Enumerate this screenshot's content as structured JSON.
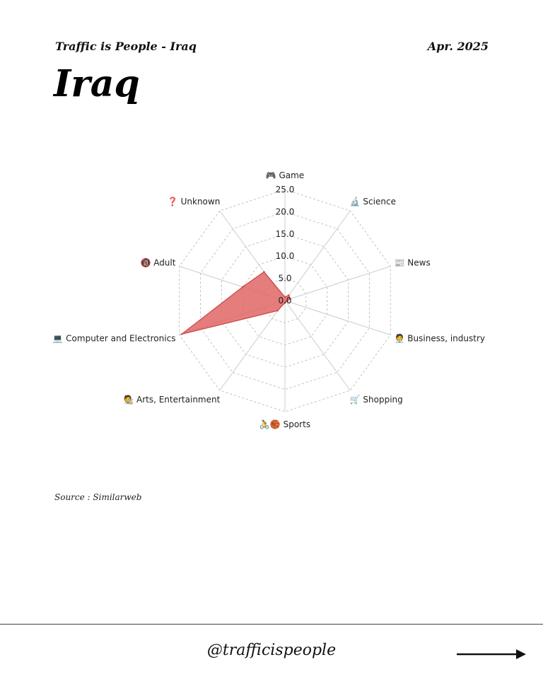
{
  "header": {
    "subtitle": "Traffic is People - Iraq",
    "date": "Apr. 2025",
    "title": "Iraq"
  },
  "source": "Source : Similarweb",
  "footer": {
    "handle": "@trafficispeople",
    "arrow_icon": "right-arrow-icon"
  },
  "colors": {
    "fill": "#e06666",
    "stroke": "#cc4444"
  },
  "chart_data": {
    "type": "radar",
    "title": "",
    "categories": [
      "🎮 Game",
      "🔬 Science",
      "📰 News",
      "🧑‍💼 Business, industry",
      "🛒 Shopping",
      "🚴🏀 Sports",
      "🧑‍🎨 Arts, Entertainment",
      "💻 Computer and Electronics",
      "🔞 Adult",
      "❓ Unknown"
    ],
    "series": [
      {
        "values": [
          0.8,
          1.5,
          1.2,
          0.5,
          0.3,
          0.5,
          2.8,
          24.5,
          10.0,
          8.0
        ]
      }
    ],
    "rlim": [
      0,
      25
    ],
    "ticks": [
      "0.0",
      "5.0",
      "10.0",
      "15.0",
      "20.0",
      "25.0"
    ],
    "tick_values": [
      0,
      5,
      10,
      15,
      20,
      25
    ],
    "grid": true
  }
}
